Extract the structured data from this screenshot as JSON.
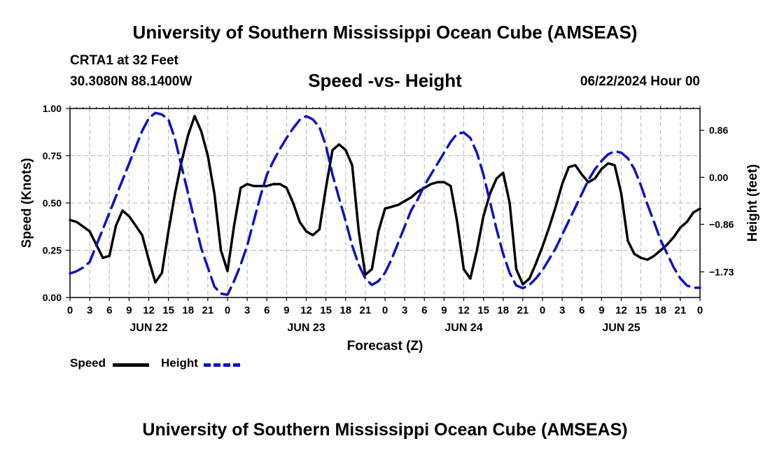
{
  "header": {
    "title": "University of Southern Mississippi Ocean Cube (AMSEAS)",
    "station": "CRTA1 at 32 Feet",
    "location": "30.3080N  88.1400W",
    "date": "06/22/2024 Hour 00",
    "footer_title": "University of Southern Mississippi Ocean Cube (AMSEAS)"
  },
  "chart_data": {
    "type": "line",
    "title": "Speed -vs- Height",
    "xlabel": "Forecast (Z)",
    "ylabel_left": "Speed (Knots)",
    "ylabel_right": "Height (feet)",
    "xlim": [
      0,
      96
    ],
    "ylim_left": [
      0,
      1.0
    ],
    "ylim_right": [
      -2.2,
      1.26
    ],
    "left_ticks": [
      {
        "value": 0.0,
        "label": "0.00"
      },
      {
        "value": 0.25,
        "label": "0.25"
      },
      {
        "value": 0.5,
        "label": "0.50"
      },
      {
        "value": 0.75,
        "label": "0.75"
      },
      {
        "value": 1.0,
        "label": "1.00"
      }
    ],
    "right_ticks": [
      {
        "value": 0.86,
        "label": "0.86"
      },
      {
        "value": 0.0,
        "label": "0.00"
      },
      {
        "value": -0.86,
        "label": "−0.86"
      },
      {
        "value": -1.73,
        "label": "−1.73"
      }
    ],
    "x_tick_labels": [
      "0",
      "3",
      "6",
      "9",
      "12",
      "15",
      "18",
      "21",
      "0",
      "3",
      "6",
      "9",
      "12",
      "15",
      "18",
      "21",
      "0",
      "3",
      "6",
      "9",
      "12",
      "15",
      "18",
      "21",
      "0",
      "3",
      "6",
      "9",
      "12",
      "15",
      "18",
      "21",
      "0"
    ],
    "day_labels": [
      {
        "label": "JUN 22",
        "hour": 12
      },
      {
        "label": "JUN 23",
        "hour": 36
      },
      {
        "label": "JUN 24",
        "hour": 60
      },
      {
        "label": "JUN 25",
        "hour": 84
      }
    ],
    "series": [
      {
        "name": "Speed",
        "color": "#000000",
        "axis": "left",
        "x": [
          0,
          1,
          3,
          4,
          5,
          6,
          7,
          8,
          9,
          10,
          11,
          12,
          13,
          14,
          15,
          16,
          17,
          18,
          19,
          20,
          21,
          22,
          23,
          24,
          25,
          26,
          27,
          28,
          29,
          30,
          31,
          32,
          33,
          34,
          35,
          36,
          37,
          38,
          39,
          40,
          41,
          42,
          43,
          44,
          45,
          46,
          47,
          48,
          49,
          50,
          51,
          52,
          53,
          54,
          55,
          56,
          57,
          58,
          59,
          60,
          61,
          62,
          63,
          64,
          65,
          66,
          67,
          68,
          69,
          70,
          71,
          72,
          73,
          74,
          75,
          76,
          77,
          78,
          79,
          80,
          81,
          82,
          83,
          84,
          85,
          86,
          87,
          88,
          89,
          90,
          91,
          92,
          93,
          94,
          95,
          96
        ],
        "values": [
          0.41,
          0.4,
          0.35,
          0.28,
          0.21,
          0.22,
          0.38,
          0.46,
          0.43,
          0.38,
          0.33,
          0.2,
          0.08,
          0.13,
          0.35,
          0.55,
          0.72,
          0.86,
          0.96,
          0.88,
          0.75,
          0.55,
          0.25,
          0.14,
          0.38,
          0.58,
          0.6,
          0.59,
          0.59,
          0.59,
          0.6,
          0.6,
          0.58,
          0.5,
          0.4,
          0.35,
          0.33,
          0.36,
          0.58,
          0.78,
          0.81,
          0.78,
          0.7,
          0.35,
          0.12,
          0.15,
          0.35,
          0.47,
          0.48,
          0.49,
          0.51,
          0.53,
          0.56,
          0.58,
          0.6,
          0.61,
          0.61,
          0.59,
          0.4,
          0.15,
          0.1,
          0.25,
          0.43,
          0.55,
          0.63,
          0.66,
          0.5,
          0.15,
          0.07,
          0.1,
          0.18,
          0.27,
          0.37,
          0.48,
          0.6,
          0.69,
          0.7,
          0.65,
          0.61,
          0.63,
          0.68,
          0.71,
          0.7,
          0.55,
          0.3,
          0.23,
          0.21,
          0.2,
          0.22,
          0.25,
          0.28,
          0.32,
          0.37,
          0.4,
          0.45,
          0.47
        ]
      },
      {
        "name": "Height",
        "color": "#1010c8",
        "axis": "right",
        "x": [
          0,
          1,
          2,
          3,
          4,
          5,
          6,
          7,
          8,
          9,
          10,
          11,
          12,
          13,
          14,
          15,
          16,
          17,
          18,
          19,
          20,
          21,
          22,
          23,
          24,
          25,
          26,
          27,
          28,
          29,
          30,
          31,
          32,
          33,
          34,
          35,
          36,
          37,
          38,
          39,
          40,
          41,
          42,
          43,
          44,
          45,
          46,
          47,
          48,
          49,
          50,
          51,
          52,
          53,
          54,
          55,
          56,
          57,
          58,
          59,
          60,
          61,
          62,
          63,
          64,
          65,
          66,
          67,
          68,
          69,
          70,
          71,
          72,
          73,
          74,
          75,
          76,
          77,
          78,
          79,
          80,
          81,
          82,
          83,
          84,
          85,
          86,
          87,
          88,
          89,
          90,
          91,
          92,
          93,
          94,
          95,
          96
        ],
        "values": [
          -1.76,
          -1.72,
          -1.65,
          -1.55,
          -1.25,
          -0.95,
          -0.65,
          -0.35,
          -0.05,
          0.25,
          0.55,
          0.85,
          1.08,
          1.18,
          1.15,
          1.06,
          0.7,
          0.2,
          -0.3,
          -0.8,
          -1.3,
          -1.65,
          -2.0,
          -2.13,
          -2.15,
          -1.9,
          -1.6,
          -1.25,
          -0.8,
          -0.35,
          0.05,
          0.3,
          0.52,
          0.72,
          0.9,
          1.05,
          1.12,
          1.06,
          0.92,
          0.58,
          0.05,
          -0.38,
          -0.8,
          -1.25,
          -1.6,
          -1.85,
          -1.97,
          -1.9,
          -1.75,
          -1.5,
          -1.2,
          -0.9,
          -0.6,
          -0.4,
          -0.15,
          0.05,
          0.25,
          0.45,
          0.65,
          0.8,
          0.82,
          0.72,
          0.45,
          0.05,
          -0.45,
          -0.95,
          -1.4,
          -1.75,
          -1.98,
          -2.03,
          -1.97,
          -1.85,
          -1.7,
          -1.5,
          -1.3,
          -1.05,
          -0.8,
          -0.55,
          -0.3,
          -0.05,
          0.15,
          0.3,
          0.42,
          0.48,
          0.45,
          0.35,
          0.15,
          -0.15,
          -0.5,
          -0.82,
          -1.15,
          -1.4,
          -1.65,
          -1.85,
          -1.98,
          -2.02,
          -2.02
        ]
      }
    ],
    "legend": [
      {
        "label": "Speed",
        "color": "#000000",
        "style": "solid"
      },
      {
        "label": "Height",
        "color": "#1010c8",
        "style": "dashed"
      }
    ],
    "grid": true,
    "legend_position": "bottom-left"
  }
}
